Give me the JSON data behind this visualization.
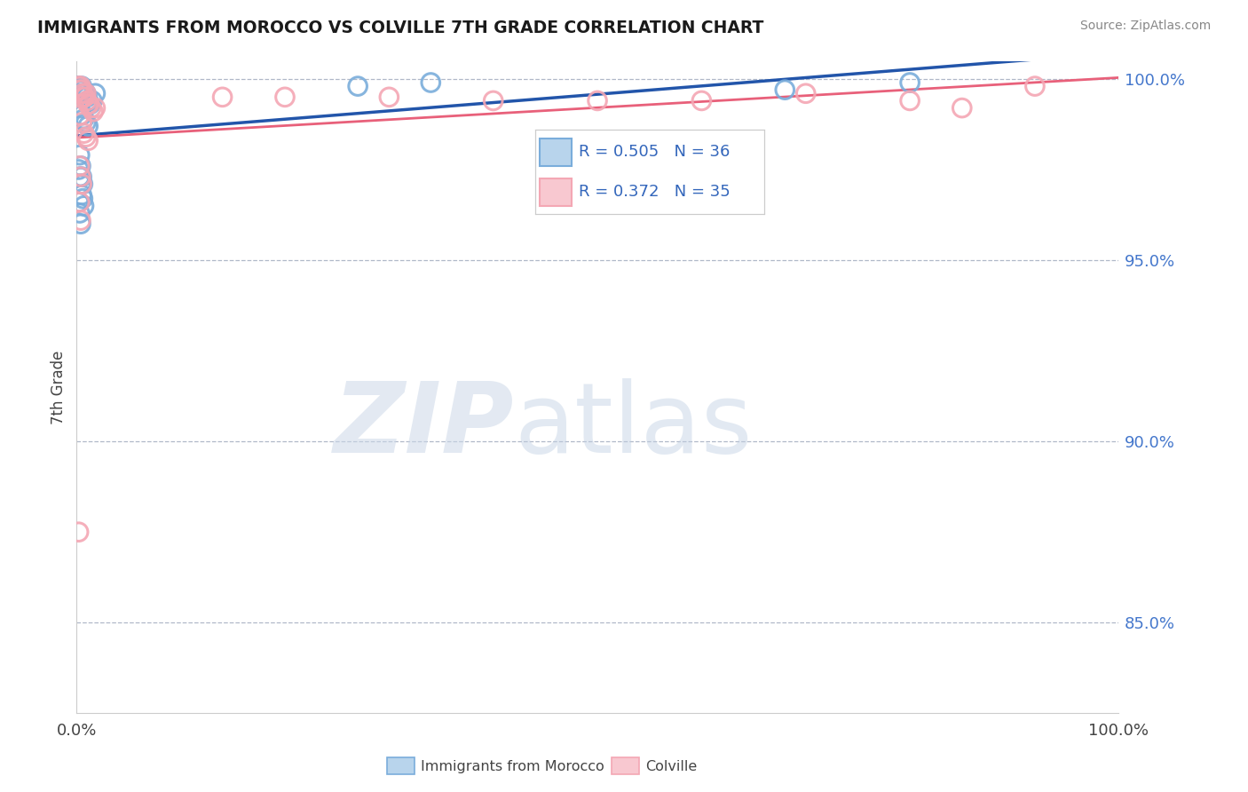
{
  "title": "IMMIGRANTS FROM MOROCCO VS COLVILLE 7TH GRADE CORRELATION CHART",
  "source": "Source: ZipAtlas.com",
  "ylabel": "7th Grade",
  "legend_label1": "Immigrants from Morocco",
  "legend_label2": "Colville",
  "R1": 0.505,
  "N1": 36,
  "R2": 0.372,
  "N2": 35,
  "blue_color": "#7aaddb",
  "pink_color": "#f4a7b4",
  "blue_line_color": "#2255aa",
  "pink_line_color": "#e8607a",
  "xlim": [
    0.0,
    1.0
  ],
  "ylim": [
    0.825,
    1.005
  ],
  "yticks": [
    0.85,
    0.9,
    0.95,
    1.0
  ],
  "ytick_labels": [
    "85.0%",
    "90.0%",
    "95.0%",
    "100.0%"
  ],
  "blue_x": [
    0.001,
    0.002,
    0.003,
    0.004,
    0.005,
    0.006,
    0.007,
    0.008,
    0.009,
    0.01,
    0.011,
    0.013,
    0.015,
    0.018,
    0.003,
    0.005,
    0.007,
    0.009,
    0.011,
    0.003,
    0.004,
    0.005,
    0.006,
    0.002,
    0.003,
    0.004,
    0.002,
    0.003,
    0.004,
    0.005,
    0.006,
    0.007,
    0.27,
    0.34,
    0.68,
    0.8
  ],
  "blue_y": [
    0.998,
    0.997,
    0.996,
    0.997,
    0.998,
    0.997,
    0.996,
    0.995,
    0.996,
    0.995,
    0.994,
    0.993,
    0.994,
    0.996,
    0.992,
    0.99,
    0.989,
    0.988,
    0.987,
    0.979,
    0.976,
    0.973,
    0.971,
    0.966,
    0.963,
    0.96,
    0.975,
    0.973,
    0.971,
    0.968,
    0.967,
    0.965,
    0.998,
    0.999,
    0.997,
    0.999
  ],
  "pink_x": [
    0.002,
    0.003,
    0.004,
    0.005,
    0.006,
    0.007,
    0.008,
    0.009,
    0.01,
    0.011,
    0.012,
    0.014,
    0.016,
    0.018,
    0.003,
    0.005,
    0.007,
    0.009,
    0.011,
    0.003,
    0.004,
    0.005,
    0.003,
    0.004,
    0.14,
    0.2,
    0.3,
    0.4,
    0.5,
    0.6,
    0.7,
    0.8,
    0.85,
    0.92,
    0.002
  ],
  "pink_y": [
    0.998,
    0.997,
    0.998,
    0.997,
    0.996,
    0.995,
    0.995,
    0.996,
    0.994,
    0.993,
    0.993,
    0.992,
    0.991,
    0.992,
    0.99,
    0.988,
    0.985,
    0.984,
    0.983,
    0.976,
    0.973,
    0.971,
    0.966,
    0.961,
    0.995,
    0.995,
    0.995,
    0.994,
    0.994,
    0.994,
    0.996,
    0.994,
    0.992,
    0.998,
    0.875
  ]
}
